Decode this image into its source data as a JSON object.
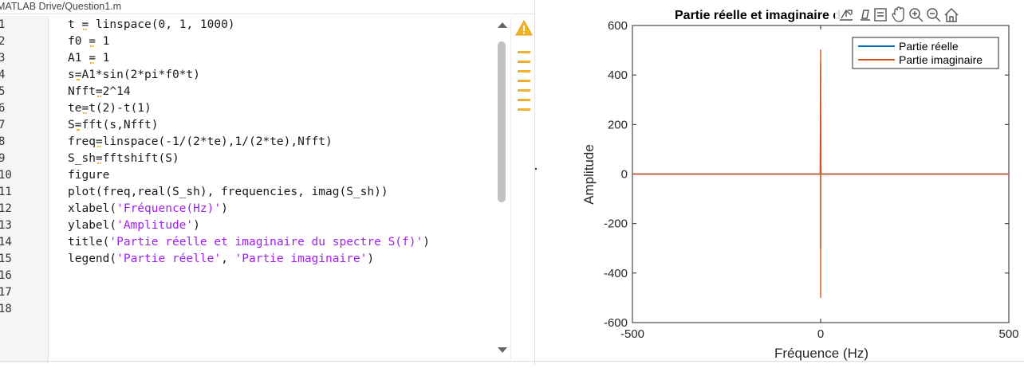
{
  "editor": {
    "file_path": "MATLAB Drive/Question1.m",
    "line_numbers": [
      "1",
      "2",
      "3",
      "4",
      "5",
      "6",
      "7",
      "8",
      "9",
      "10",
      "11",
      "12",
      "13",
      "14",
      "15",
      "16",
      "17",
      "18"
    ],
    "lines": [
      [
        {
          "t": "t "
        },
        {
          "t": "=",
          "op": true
        },
        {
          "t": " linspace(0, 1, 1000)"
        }
      ],
      [
        {
          "t": "f0 "
        },
        {
          "t": "=",
          "op": true
        },
        {
          "t": " 1"
        }
      ],
      [
        {
          "t": "A1 "
        },
        {
          "t": "=",
          "op": true
        },
        {
          "t": " 1"
        }
      ],
      [
        {
          "t": "s"
        },
        {
          "t": "=",
          "op": true
        },
        {
          "t": "A1*sin(2*pi*f0*t)"
        }
      ],
      [
        {
          "t": "Nfft"
        },
        {
          "t": "=",
          "op": true
        },
        {
          "t": "2^14"
        }
      ],
      [
        {
          "t": "te"
        },
        {
          "t": "=",
          "op": true
        },
        {
          "t": "t(2)-t(1)"
        }
      ],
      [
        {
          "t": "S"
        },
        {
          "t": "=",
          "op": true
        },
        {
          "t": "fft(s,Nfft)"
        }
      ],
      [
        {
          "t": "freq"
        },
        {
          "t": "=",
          "op": true
        },
        {
          "t": "linspace(-1/(2*te),1/(2*te),Nfft)"
        }
      ],
      [
        {
          "t": "S_sh"
        },
        {
          "t": "=",
          "op": true
        },
        {
          "t": "fftshift(S)"
        }
      ],
      [
        {
          "t": "figure"
        }
      ],
      [
        {
          "t": "plot(freq,real(S_sh), frequencies, imag(S_sh))"
        }
      ],
      [
        {
          "t": "xlabel("
        },
        {
          "t": "'Fréquence(Hz)'",
          "str": true
        },
        {
          "t": ")"
        }
      ],
      [
        {
          "t": "ylabel("
        },
        {
          "t": "'Amplitude'",
          "str": true
        },
        {
          "t": ")"
        }
      ],
      [
        {
          "t": "title("
        },
        {
          "t": "'Partie réelle et imaginaire du spectre S(f)'",
          "str": true
        },
        {
          "t": ")"
        }
      ],
      [
        {
          "t": "legend("
        },
        {
          "t": "'Partie réelle'",
          "str": true
        },
        {
          "t": ", "
        },
        {
          "t": "'Partie imaginaire'",
          "str": true
        },
        {
          "t": ")"
        }
      ],
      [],
      [],
      []
    ],
    "warning_marker_count": 7
  },
  "figure": {
    "toolbar_icons": [
      "export-icon",
      "brush-icon",
      "data-tips-icon",
      "pan-icon",
      "zoom-in-icon",
      "zoom-out-icon",
      "home-icon"
    ]
  },
  "colors": {
    "series_real": "#0072bd",
    "series_imag": "#d95319",
    "string": "#a020f0",
    "warning": "#f0b323"
  },
  "chart_data": {
    "type": "line",
    "title": "Partie réelle et imaginaire du spectre S(f)",
    "title_visible": "Partie réelle et imaginaire d",
    "xlabel": "Fréquence (Hz)",
    "ylabel": "Amplitude",
    "xlim": [
      -500,
      500
    ],
    "ylim": [
      -600,
      600
    ],
    "xticks": [
      -500,
      0,
      500
    ],
    "yticks": [
      -600,
      -400,
      -200,
      0,
      200,
      400,
      600
    ],
    "grid": false,
    "legend_position": "top-right",
    "series": [
      {
        "name": "Partie réelle",
        "x": [
          -500,
          -4,
          -1,
          0,
          0,
          0,
          1,
          4,
          500
        ],
        "y": [
          0,
          0,
          0,
          450,
          -300,
          320,
          0,
          0,
          0
        ]
      },
      {
        "name": "Partie imaginaire",
        "x": [
          -500,
          -4,
          -1,
          0,
          0,
          0,
          1,
          4,
          500
        ],
        "y": [
          0,
          0,
          0,
          503,
          -500,
          80,
          0,
          0,
          0
        ]
      }
    ]
  }
}
